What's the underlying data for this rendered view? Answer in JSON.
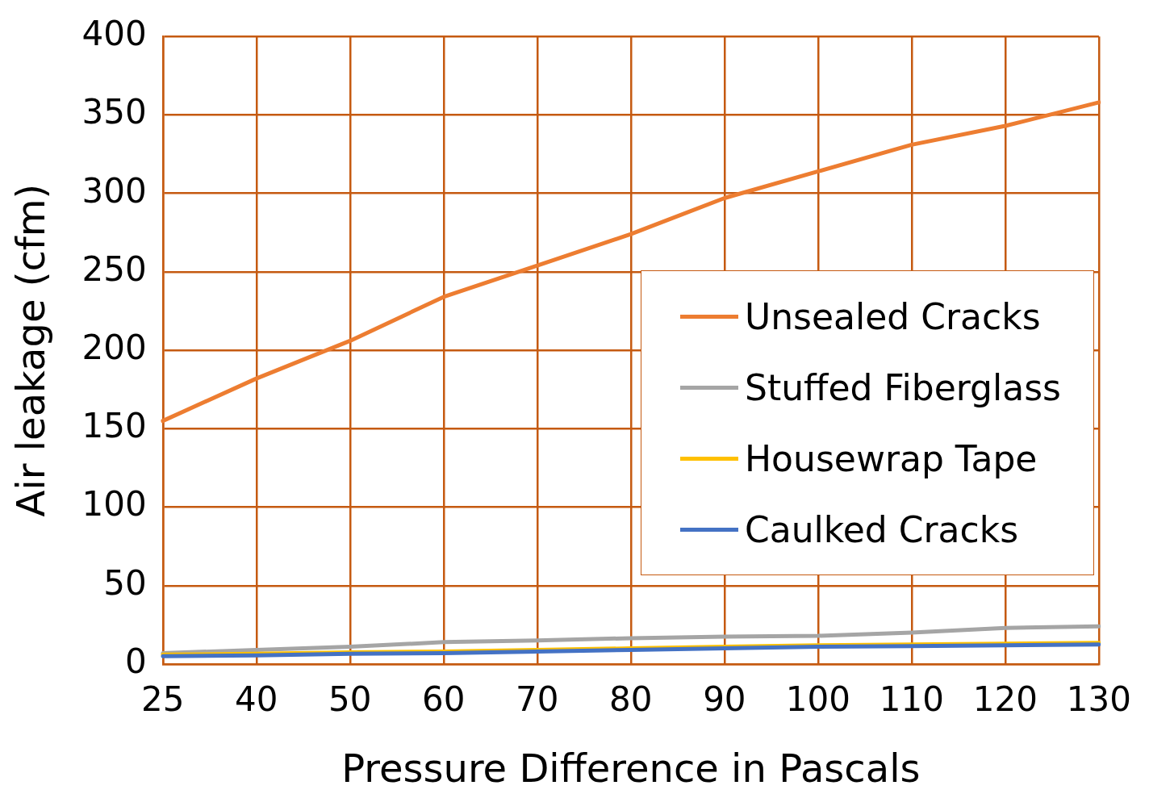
{
  "chart_data": {
    "type": "line",
    "xlabel": "Pressure Difference in Pascals",
    "ylabel": "Air leakage (cfm)",
    "categories": [
      "25",
      "40",
      "50",
      "60",
      "70",
      "80",
      "90",
      "100",
      "110",
      "120",
      "130"
    ],
    "series": [
      {
        "name": "Unsealed Cracks",
        "color": "#ed7d31",
        "values": [
          155,
          182,
          206,
          234,
          254,
          274,
          297,
          314,
          331,
          343,
          358
        ]
      },
      {
        "name": "Stuffed Fiberglass",
        "color": "#a5a5a5",
        "values": [
          7,
          9,
          11,
          14,
          15,
          16.5,
          17.5,
          18,
          20,
          23,
          24
        ]
      },
      {
        "name": "Housewrap Tape",
        "color": "#ffc000",
        "values": [
          6,
          6.5,
          7.5,
          8,
          9,
          10,
          11,
          12,
          12.5,
          13,
          13.5
        ]
      },
      {
        "name": "Caulked Cracks",
        "color": "#4472c4",
        "values": [
          5,
          5.5,
          6.5,
          7,
          8,
          9,
          10,
          11,
          11.5,
          12,
          12.5
        ]
      }
    ],
    "ylim": [
      0,
      400
    ],
    "yticks": [
      0,
      50,
      100,
      150,
      200,
      250,
      300,
      350,
      400
    ],
    "grid": true,
    "legend": "right",
    "marker": "none",
    "line_style": "solid"
  }
}
